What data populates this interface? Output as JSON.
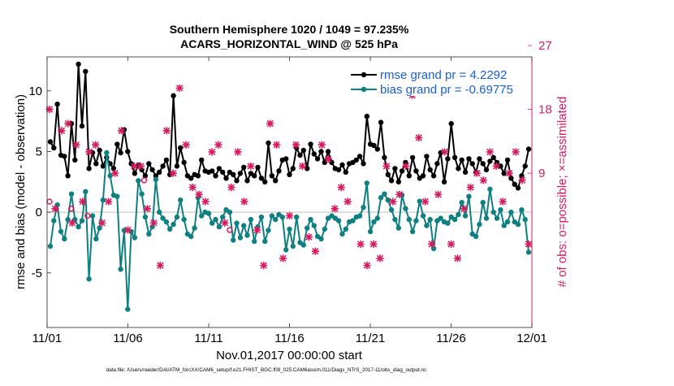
{
  "chart_data": {
    "type": "line",
    "title": "Southern Hemisphere 1020 / 1049 = 97.235%",
    "subtitle": "ACARS_HORIZONTAL_WIND @ 525 hPa",
    "xlabel": "Nov.01,2017 00:00:00 start",
    "ylabel": "rmse and bias (model - observation)",
    "ylabel_right": "# of obs: o=possible; ×=assimilated",
    "footnote": "data file: /Users/raeder/DAI/ATM_forcXX/CAM6_setup/f.e21.FHIST_BGC.f09_025.CAM6assim.011/Diags_NTrS_2017-11/obs_diag_output.nc",
    "xlim": [
      0,
      30
    ],
    "ylim": [
      -9.5,
      12.8
    ],
    "ylim_right": [
      -12.75,
      25.4
    ],
    "x_ticks": [
      0,
      5,
      10,
      15,
      20,
      25,
      30
    ],
    "x_tick_labels": [
      "11/01",
      "11/06",
      "11/11",
      "11/16",
      "11/21",
      "11/26",
      "12/01"
    ],
    "y_ticks": [
      -5,
      0,
      5,
      10
    ],
    "y_tick_labels": [
      "-5",
      "0",
      "5",
      "10"
    ],
    "y_right_ticks": [
      9,
      18,
      27
    ],
    "y_right_tick_labels": [
      "9",
      "18",
      "27"
    ],
    "colors": {
      "rmse": "#000000",
      "bias": "#0f7f7f",
      "obs": "#d81b60",
      "zero_line": "#cccccc",
      "legend_text": "#1a5fd6"
    },
    "series": [
      {
        "name": "rmse grand pr = 4.2292",
        "axis": "left",
        "color": "#000000",
        "values": [
          5.8,
          5.3,
          8.9,
          4.7,
          4.6,
          3.0,
          7.3,
          4.3,
          12.2,
          7.1,
          11.6,
          3.6,
          4.9,
          4.0,
          5.1,
          3.8,
          4.5,
          4.0,
          3.6,
          5.6,
          4.9,
          6.8,
          5.0,
          4.0,
          3.2,
          3.9,
          3.5,
          3.0,
          4.0,
          3.5,
          3.0,
          3.3,
          3.8,
          4.3,
          3.1,
          9.6,
          3.8,
          5.3,
          4.1,
          3.0,
          2.8,
          3.1,
          3.0,
          4.3,
          3.4,
          3.3,
          3.4,
          3.0,
          3.6,
          3.3,
          2.8,
          3.3,
          3.1,
          2.6,
          3.2,
          3.7,
          2.6,
          3.2,
          3.0,
          3.7,
          2.8,
          2.5,
          5.7,
          3.0,
          2.6,
          3.4,
          4.3,
          4.4,
          3.1,
          3.6,
          5.3,
          4.7,
          5.1,
          3.6,
          5.6,
          4.8,
          4.4,
          5.0,
          4.1,
          5.0,
          4.1,
          3.6,
          3.5,
          3.9,
          3.3,
          4.0,
          4.1,
          4.3,
          4.6,
          4.0,
          7.9,
          5.6,
          5.5,
          5.2,
          7.4,
          4.5,
          3.1,
          2.6,
          3.6,
          2.5,
          3.4,
          4.1,
          3.0,
          4.5,
          3.4,
          2.8,
          3.0,
          4.6,
          3.5,
          3.0,
          4.0,
          4.9,
          2.5,
          4.4,
          7.3,
          4.5,
          3.6,
          4.3,
          3.3,
          4.4,
          4.0,
          3.3,
          4.4,
          4.0,
          3.5,
          4.2,
          4.5,
          4.1,
          3.8,
          3.2,
          4.3,
          2.8,
          2.3,
          2.0,
          3.0,
          3.8,
          5.2
        ]
      },
      {
        "name": "bias grand pr = -0.69775",
        "axis": "left",
        "color": "#0f7f7f",
        "values": [
          -2.8,
          -0.7,
          0.6,
          -1.6,
          -2.2,
          -0.6,
          1.5,
          -0.6,
          -1.2,
          -0.7,
          1.7,
          -5.5,
          -0.3,
          -2.2,
          -1.3,
          1.0,
          4.9,
          3.0,
          1.4,
          1.3,
          -4.7,
          -1.5,
          -8.0,
          -1.6,
          -2.1,
          2.6,
          1.5,
          -0.4,
          -1.8,
          -1.2,
          2.7,
          0.0,
          -0.5,
          -0.8,
          -1.4,
          -1.0,
          -0.4,
          1.0,
          -0.6,
          -1.8,
          -2.0,
          -1.3,
          1.2,
          -0.3,
          0.0,
          -0.1,
          -0.9,
          -0.6,
          -1.2,
          -0.4,
          0.2,
          0.0,
          -2.3,
          -0.9,
          -2.1,
          -1.1,
          -1.9,
          -0.6,
          -2.4,
          -1.2,
          -0.4,
          -2.4,
          -1.5,
          -0.3,
          -0.6,
          -0.2,
          -0.4,
          -3.1,
          -1.4,
          -2.8,
          -0.4,
          -2.5,
          -2.7,
          -1.3,
          -0.6,
          -1.1,
          -2.0,
          -2.2,
          -1.4,
          -0.5,
          -0.3,
          -0.5,
          -0.7,
          -1.8,
          -1.4,
          -0.8,
          -0.7,
          -0.4,
          -0.3,
          0.4,
          2.4,
          -1.6,
          -0.8,
          -0.5,
          1.2,
          1.5,
          1.0,
          0.2,
          -0.6,
          -1.3,
          1.4,
          0.3,
          -0.6,
          -1.6,
          -0.7,
          0.9,
          -0.3,
          -1.1,
          -0.6,
          -3.0,
          -0.7,
          -0.5,
          -0.8,
          -0.9,
          -0.4,
          -0.6,
          -0.2,
          0.8,
          -0.3,
          1.3,
          -1.8,
          -2.0,
          -1.0,
          0.8,
          -0.5,
          1.9,
          0.0,
          -0.5,
          0.2,
          -1.1,
          -0.8,
          0.0,
          -0.8,
          -1.0,
          0.2,
          -0.6,
          -3.3
        ]
      },
      {
        "name": "obs possible",
        "axis": "right",
        "marker": "o",
        "color": "#d81b60",
        "x": [
          0.15,
          1.5,
          2.5,
          6.0,
          11.3,
          20.9
        ],
        "values": [
          5.0,
          4.0,
          3.0,
          8.0,
          1.0,
          24.0
        ]
      },
      {
        "name": "obs assimilated",
        "axis": "right",
        "marker": "x",
        "color": "#d81b60",
        "x": [
          0.15,
          0.5,
          0.9,
          1.3,
          1.55,
          1.8,
          2.2,
          2.6,
          3.0,
          3.4,
          3.8,
          4.2,
          4.6,
          5.0,
          5.4,
          5.8,
          6.2,
          6.6,
          7.0,
          7.4,
          7.8,
          8.2,
          8.6,
          9.0,
          9.4,
          9.8,
          10.2,
          10.6,
          11.0,
          11.4,
          11.8,
          12.2,
          12.6,
          13.0,
          13.4,
          13.8,
          14.2,
          14.6,
          15.0,
          15.4,
          15.8,
          16.2,
          16.6,
          17.0,
          17.4,
          17.8,
          18.2,
          18.6,
          19.0,
          19.4,
          19.8,
          20.2,
          20.6,
          21.0,
          21.4,
          21.8,
          22.2,
          22.6,
          23.0,
          23.4,
          23.8,
          24.2,
          24.6,
          25.0,
          25.4,
          25.8,
          26.2,
          26.6,
          27.0,
          27.4,
          27.8,
          28.2,
          28.6,
          29.0,
          29.4,
          29.8
        ],
        "values": [
          18,
          4,
          15,
          16,
          2,
          13,
          5,
          12,
          13,
          2,
          5,
          9,
          15,
          1,
          10,
          10,
          4,
          2,
          -4,
          15,
          9,
          21,
          13,
          7,
          6,
          5,
          12,
          13,
          2,
          7,
          12,
          5,
          10,
          1,
          -4,
          16,
          13,
          -3,
          3,
          13,
          10,
          0,
          -2,
          13,
          11,
          4,
          7,
          5,
          22,
          -1,
          -4,
          -1,
          -3,
          10,
          5,
          6,
          10,
          20,
          14,
          5,
          -1,
          6,
          12,
          -1,
          -3,
          4,
          7,
          9,
          8,
          12,
          10,
          5,
          9,
          12,
          8,
          -1
        ]
      }
    ],
    "legend": {
      "placement": "top-right",
      "entries": [
        "rmse grand pr = 4.2292",
        "bias grand pr = -0.69775"
      ]
    }
  }
}
